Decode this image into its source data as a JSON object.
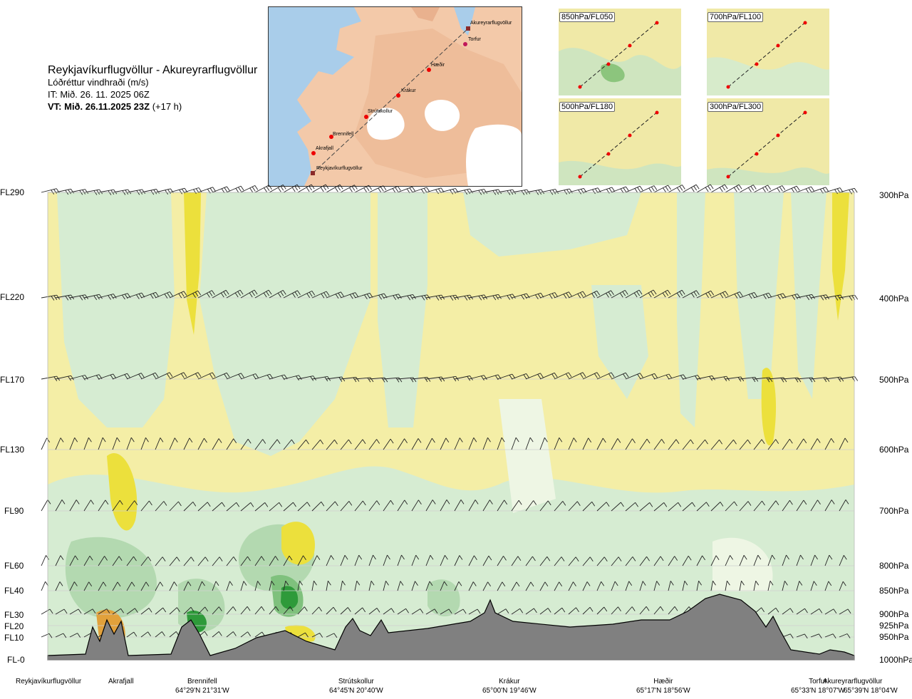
{
  "header": {
    "route": "Reykjavíkurflugvöllur - Akureyrarflugvöllur",
    "quantity": "Lóðréttur vindhraði (m/s)",
    "it": "IT: Mið. 26. 11. 2025 06Z",
    "vt_bold": "VT: Mið. 26.11.2025 23Z",
    "vt_offset": " (+17 h)"
  },
  "map": {
    "points": [
      "Akureyrarflugvöllur",
      "Torfur",
      "Hæðir",
      "Krákur",
      "Strútskollur",
      "Brennifell",
      "Akrafjall",
      "Reykjavíkurflugvöllur"
    ]
  },
  "panels": [
    "850hPa/FL050",
    "700hPa/FL100",
    "500hPa/FL180",
    "300hPa/FL300"
  ],
  "colors": {
    "terrain": "#808080",
    "green1": "#d6ecd2",
    "green2": "#b3d9b0",
    "green3": "#7fc17d",
    "green4": "#2e9a3a",
    "yellow1": "#f4eea6",
    "yellow2": "#ece03c",
    "orange": "#e2a13b"
  },
  "chart_data": {
    "type": "heatmap",
    "title": "Lóðréttur vindhraði (m/s)",
    "y_left_labels": [
      "FL290",
      "FL220",
      "FL170",
      "FL130",
      "FL90",
      "FL60",
      "FL40",
      "FL30",
      "FL20",
      "FL10",
      "FL-0"
    ],
    "y_right_labels": [
      "300hPa",
      "400hPa",
      "500hPa",
      "600hPa",
      "700hPa",
      "800hPa",
      "850hPa",
      "900hPa",
      "925hPa",
      "950hPa",
      "1000hPa"
    ],
    "stations": [
      {
        "name": "Reykjavíkurflugvöllur",
        "coord": ""
      },
      {
        "name": "Akrafjall",
        "coord": ""
      },
      {
        "name": "Brennifell",
        "coord": "64°29'N 21°31'W"
      },
      {
        "name": "Strútskollur",
        "coord": "64°45'N 20°40'W"
      },
      {
        "name": "Krákur",
        "coord": "65°00'N 19°46'W"
      },
      {
        "name": "Hæðir",
        "coord": "65°17'N 18°56'W"
      },
      {
        "name": "Torfur",
        "coord": "65°33'N 18°07'W"
      },
      {
        "name": "Akureyrarflugvöllur",
        "coord": "65°39'N 18°04'W"
      }
    ]
  }
}
